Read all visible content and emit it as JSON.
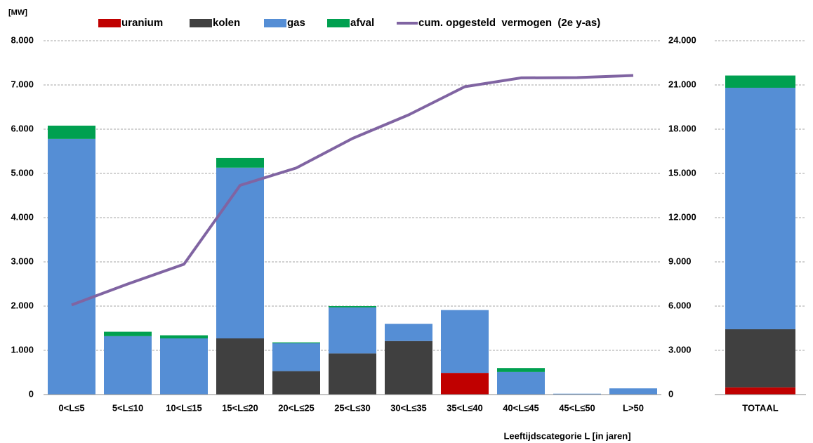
{
  "chart_data": [
    {
      "type": "bar",
      "stacked": true,
      "y_unit": "[MW]",
      "x_label": "Leeftijdscategorie L [in jaren]",
      "categories": [
        "0<L≤5",
        "5<L≤10",
        "10<L≤15",
        "15<L≤20",
        "20<L≤25",
        "25<L≤30",
        "30<L≤35",
        "35<L≤40",
        "40<L≤45",
        "45<L≤50",
        "L>50"
      ],
      "series": [
        {
          "name": "uranium",
          "color": "#c00000",
          "values": [
            0,
            0,
            0,
            0,
            0,
            0,
            0,
            490,
            0,
            0,
            0
          ]
        },
        {
          "name": "kolen",
          "color": "#404040",
          "values": [
            0,
            0,
            0,
            1270,
            530,
            930,
            1210,
            0,
            0,
            0,
            0
          ]
        },
        {
          "name": "gas",
          "color": "#558ed5",
          "values": [
            5780,
            1320,
            1270,
            3860,
            630,
            1040,
            390,
            1420,
            510,
            20,
            140
          ]
        },
        {
          "name": "afval",
          "color": "#00a050",
          "values": [
            300,
            100,
            70,
            220,
            20,
            30,
            0,
            0,
            90,
            0,
            0
          ]
        },
        {
          "name": "cum. opgesteld  vermogen  (2e y-as)",
          "color": "#8064a2",
          "type": "line",
          "axis": "y2",
          "values": [
            6080,
            7500,
            8840,
            14190,
            15370,
            17370,
            18970,
            20880,
            21480,
            21500,
            21640
          ]
        }
      ],
      "ylim": [
        0,
        8000
      ],
      "yticks": [
        0,
        {
          "value": 1000,
          "label": "1.000"
        },
        {
          "value": 2000,
          "label": "2.000"
        },
        {
          "value": 3000,
          "label": "3.000"
        },
        {
          "value": 4000,
          "label": "4.000"
        },
        {
          "value": 5000,
          "label": "5.000"
        },
        {
          "value": 6000,
          "label": "6.000"
        },
        {
          "value": 7000,
          "label": "7.000"
        },
        {
          "value": 8000,
          "label": "8.000"
        }
      ],
      "y2lim": [
        0,
        24000
      ],
      "y2ticks": [
        0,
        {
          "value": 3000,
          "label": "3.000"
        },
        {
          "value": 6000,
          "label": "6.000"
        },
        {
          "value": 9000,
          "label": "9.000"
        },
        {
          "value": 12000,
          "label": "12.000"
        },
        {
          "value": 15000,
          "label": "15.000"
        },
        {
          "value": 18000,
          "label": "18.000"
        },
        {
          "value": 21000,
          "label": "21.000"
        },
        {
          "value": 24000,
          "label": "24.000"
        }
      ],
      "grid": true,
      "legend": "top"
    },
    {
      "type": "bar",
      "stacked": true,
      "categories": [
        "TOTAAL"
      ],
      "series": [
        {
          "name": "uranium",
          "color": "#c00000",
          "values": [
            490
          ]
        },
        {
          "name": "kolen",
          "color": "#404040",
          "values": [
            3940
          ]
        },
        {
          "name": "gas",
          "color": "#558ed5",
          "values": [
            16380
          ]
        },
        {
          "name": "afval",
          "color": "#00a050",
          "values": [
            830
          ]
        }
      ],
      "ylim": [
        0,
        24000
      ],
      "grid": true
    }
  ]
}
